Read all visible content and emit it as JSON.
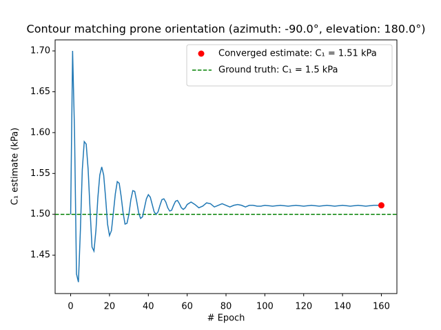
{
  "chart_data": {
    "type": "line",
    "title": "Contour matching prone orientation (azimuth: -90.0°, elevation: 180.0°)",
    "xlabel": "# Epoch",
    "ylabel": "C₁ estimate (kPa)",
    "x": [
      0,
      1,
      2,
      3,
      4,
      5,
      6,
      7,
      8,
      9,
      10,
      11,
      12,
      13,
      14,
      15,
      16,
      17,
      18,
      19,
      20,
      21,
      22,
      23,
      24,
      25,
      26,
      27,
      28,
      29,
      30,
      31,
      32,
      33,
      34,
      35,
      36,
      37,
      38,
      39,
      40,
      41,
      42,
      43,
      44,
      45,
      46,
      47,
      48,
      49,
      50,
      51,
      52,
      53,
      54,
      55,
      56,
      57,
      58,
      59,
      60,
      62,
      64,
      66,
      68,
      70,
      72,
      74,
      76,
      78,
      80,
      82,
      84,
      86,
      88,
      90,
      92,
      94,
      96,
      98,
      100,
      104,
      108,
      112,
      116,
      120,
      124,
      128,
      132,
      136,
      140,
      144,
      148,
      152,
      156,
      160
    ],
    "series": [
      {
        "color": "#1f77b4",
        "values": [
          1.5,
          1.7,
          1.6,
          1.427,
          1.417,
          1.48,
          1.555,
          1.589,
          1.586,
          1.555,
          1.505,
          1.46,
          1.455,
          1.48,
          1.52,
          1.548,
          1.558,
          1.548,
          1.52,
          1.488,
          1.474,
          1.48,
          1.502,
          1.525,
          1.54,
          1.538,
          1.522,
          1.502,
          1.488,
          1.489,
          1.5,
          1.518,
          1.529,
          1.528,
          1.516,
          1.502,
          1.495,
          1.497,
          1.508,
          1.519,
          1.524,
          1.521,
          1.512,
          1.503,
          1.5,
          1.503,
          1.511,
          1.518,
          1.519,
          1.515,
          1.508,
          1.504,
          1.505,
          1.511,
          1.516,
          1.517,
          1.513,
          1.508,
          1.506,
          1.508,
          1.512,
          1.515,
          1.512,
          1.508,
          1.51,
          1.514,
          1.513,
          1.509,
          1.511,
          1.513,
          1.511,
          1.509,
          1.511,
          1.512,
          1.511,
          1.509,
          1.511,
          1.511,
          1.51,
          1.51,
          1.511,
          1.51,
          1.511,
          1.51,
          1.511,
          1.51,
          1.511,
          1.51,
          1.511,
          1.51,
          1.511,
          1.51,
          1.511,
          1.51,
          1.511,
          1.511
        ]
      }
    ],
    "markers": [
      {
        "name": "Converged estimate: C₁ = 1.51 kPa",
        "color": "#ff0000",
        "x": 160,
        "y": 1.511
      }
    ],
    "hlines": [
      {
        "name": "Ground truth: C₁ = 1.5 kPa",
        "color": "#008000",
        "y": 1.5,
        "dashed": true
      }
    ],
    "xlim": [
      -8,
      168
    ],
    "ylim": [
      1.403,
      1.7135
    ],
    "xticks": [
      0,
      20,
      40,
      60,
      80,
      100,
      120,
      140,
      160
    ],
    "yticks": [
      1.45,
      {
        "value": 1.5,
        "label": "1.50"
      },
      1.55,
      {
        "value": 1.6,
        "label": "1.60"
      },
      1.65,
      {
        "value": 1.7,
        "label": "1.70"
      }
    ],
    "legend": "upper right"
  }
}
